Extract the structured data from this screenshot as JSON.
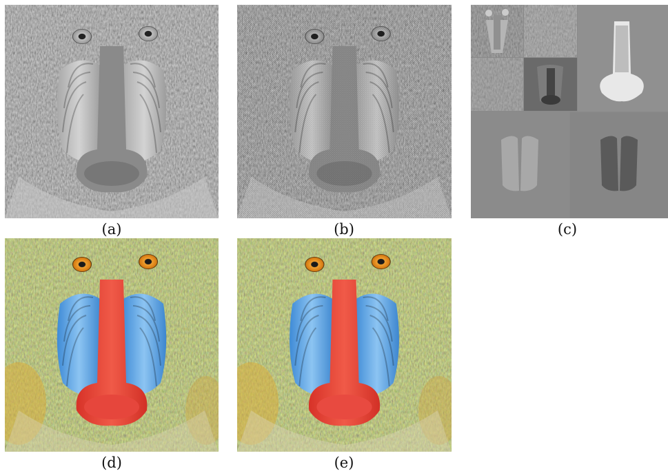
{
  "figure": {
    "panels": [
      {
        "id": "a",
        "caption": "(a)",
        "mode": "grayscale"
      },
      {
        "id": "b",
        "caption": "(b)",
        "mode": "grayscale-mosaic"
      },
      {
        "id": "c",
        "caption": "(c)",
        "mode": "wavelet-decomposition"
      },
      {
        "id": "d",
        "caption": "(d)",
        "mode": "color"
      },
      {
        "id": "e",
        "caption": "(e)",
        "mode": "color-reconstructed"
      }
    ]
  },
  "colors": {
    "background": "#ffffff",
    "nose_red": "#e8403a",
    "cheek_blue": "#5aa6e6",
    "eye_orange": "#e6901e",
    "fur_green": "#6f7a3a",
    "fur_yellow": "#d8b24a",
    "wavelet_gray": "#8a8a8a"
  }
}
